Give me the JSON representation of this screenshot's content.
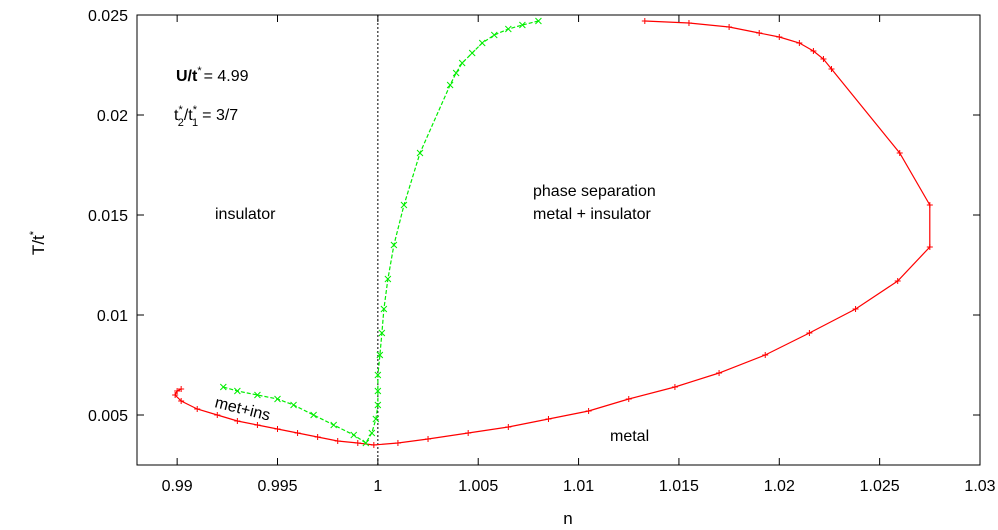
{
  "chart_data": {
    "type": "line",
    "xlabel": "n",
    "ylabel": "T/t",
    "ylabel_sup": "*",
    "xlim": [
      0.988,
      1.03
    ],
    "ylim": [
      0.0025,
      0.025
    ],
    "xticks": [
      0.99,
      0.995,
      1,
      1.005,
      1.01,
      1.015,
      1.02,
      1.025,
      1.03
    ],
    "xtick_labels": [
      "0.99",
      "0.995",
      "1",
      "1.005",
      "1.01",
      "1.015",
      "1.02",
      "1.025",
      "1.03"
    ],
    "yticks": [
      0.005,
      0.01,
      0.015,
      0.02,
      0.025
    ],
    "ytick_labels": [
      "0.005",
      "0.01",
      "0.015",
      "0.02",
      "0.025"
    ],
    "vline_x": 1,
    "grid": false,
    "params": {
      "u_label": "U/t",
      "u_value": "= 4.99",
      "t_ratio_value": "= 3/7"
    },
    "annotations": {
      "insulator": "insulator",
      "phase_sep_1": "phase separation",
      "phase_sep_2": "metal + insulator",
      "met_ins": "met+ins",
      "metal": "metal"
    },
    "series": [
      {
        "color": "#ff0000",
        "marker": "plus",
        "points": [
          [
            1.0133,
            0.0247
          ],
          [
            1.0155,
            0.0246
          ],
          [
            1.0175,
            0.0244
          ],
          [
            1.019,
            0.0241
          ],
          [
            1.02,
            0.0239
          ],
          [
            1.021,
            0.0236
          ],
          [
            1.0217,
            0.0232
          ],
          [
            1.0222,
            0.0228
          ],
          [
            1.0226,
            0.0223
          ],
          [
            1.026,
            0.0181
          ],
          [
            1.0275,
            0.0155
          ],
          [
            1.0275,
            0.0134
          ],
          [
            1.0259,
            0.0117
          ],
          [
            1.0238,
            0.0103
          ],
          [
            1.0215,
            0.0091
          ],
          [
            1.0193,
            0.008
          ],
          [
            1.017,
            0.0071
          ],
          [
            1.0148,
            0.0064
          ],
          [
            1.0125,
            0.0058
          ],
          [
            1.0105,
            0.0052
          ],
          [
            1.0085,
            0.0048
          ],
          [
            1.0065,
            0.0044
          ],
          [
            1.0045,
            0.0041
          ],
          [
            1.0025,
            0.0038
          ],
          [
            1.001,
            0.0036
          ],
          [
            0.9998,
            0.0035
          ],
          [
            0.999,
            0.0036
          ],
          [
            0.998,
            0.0037
          ],
          [
            0.997,
            0.0039
          ],
          [
            0.996,
            0.0041
          ],
          [
            0.995,
            0.0043
          ],
          [
            0.994,
            0.0045
          ],
          [
            0.993,
            0.0047
          ],
          [
            0.992,
            0.005
          ],
          [
            0.991,
            0.0053
          ],
          [
            0.9902,
            0.0057
          ],
          [
            0.9899,
            0.006
          ],
          [
            0.99,
            0.0062
          ],
          [
            0.9902,
            0.0063
          ]
        ]
      },
      {
        "color": "#00ee00",
        "marker": "cross",
        "points": [
          [
            1.008,
            0.0247
          ],
          [
            1.0072,
            0.0245
          ],
          [
            1.0065,
            0.0243
          ],
          [
            1.0058,
            0.024
          ],
          [
            1.0052,
            0.0236
          ],
          [
            1.0047,
            0.0231
          ],
          [
            1.0042,
            0.0226
          ],
          [
            1.0039,
            0.0221
          ],
          [
            1.0036,
            0.0215
          ],
          [
            1.0021,
            0.0181
          ],
          [
            1.0013,
            0.0155
          ],
          [
            1.0008,
            0.0135
          ],
          [
            1.0005,
            0.0118
          ],
          [
            1.0003,
            0.0103
          ],
          [
            1.0002,
            0.0091
          ],
          [
            1.0001,
            0.008
          ],
          [
            1.0,
            0.007
          ],
          [
            1.0,
            0.0062
          ],
          [
            1.0,
            0.0055
          ],
          [
            0.9999,
            0.0048
          ],
          [
            0.9997,
            0.0041
          ],
          [
            0.9994,
            0.0036
          ],
          [
            0.9988,
            0.004
          ],
          [
            0.9978,
            0.0045
          ],
          [
            0.9968,
            0.005
          ],
          [
            0.9958,
            0.0055
          ],
          [
            0.995,
            0.0058
          ],
          [
            0.994,
            0.006
          ],
          [
            0.993,
            0.0062
          ],
          [
            0.9923,
            0.0064
          ]
        ]
      }
    ]
  }
}
